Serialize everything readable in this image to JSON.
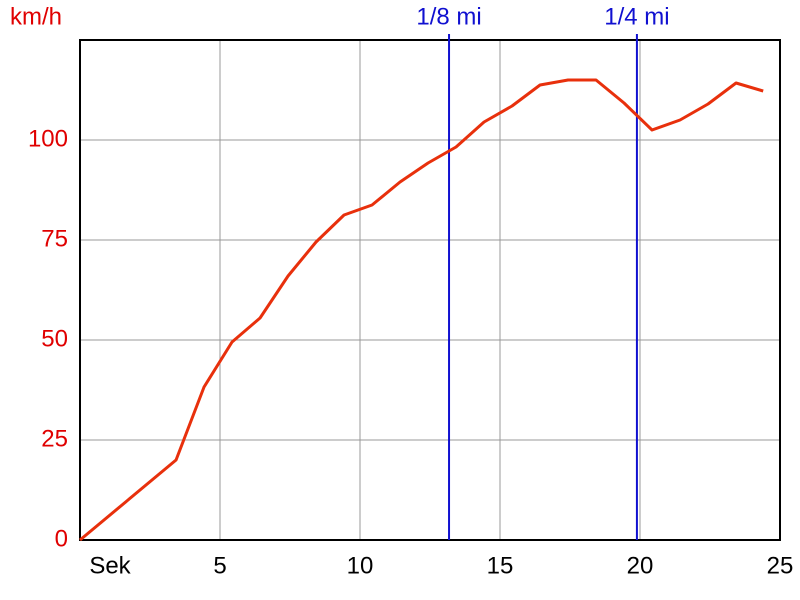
{
  "chart_data": {
    "type": "line",
    "y_label": "km/h",
    "x": [
      0,
      3.43,
      4.43,
      5.43,
      6.43,
      7.43,
      8.43,
      9.43,
      10.43,
      11.43,
      12.43,
      13.43,
      14.43,
      15.43,
      16.43,
      17.43,
      18.43,
      19.43,
      20.43,
      21.43,
      22.43,
      23.43,
      24.4
    ],
    "series": [
      {
        "color": "#e8300c",
        "values": [
          0,
          20,
          38.25,
          49.5,
          55.5,
          66,
          74.5,
          81.25,
          83.75,
          89.5,
          94.25,
          98.25,
          104.5,
          108.5,
          113.75,
          115,
          115,
          109.25,
          102.5,
          105,
          109,
          114.25,
          112.25
        ]
      }
    ],
    "markers": [
      {
        "x": 13.18,
        "label": "1/8 mi",
        "color": "#1010d0"
      },
      {
        "x": 19.89,
        "label": "1/4 mi",
        "color": "#1010d0"
      }
    ],
    "xlim": [
      0,
      25
    ],
    "xticks": [
      {
        "value": 0,
        "label": "Sek"
      },
      5,
      10,
      15,
      20,
      25
    ],
    "ylim": [
      0,
      125
    ],
    "yticks": [
      0,
      25,
      50,
      75,
      100
    ],
    "ytick_color": "#e00000",
    "grid": true
  }
}
